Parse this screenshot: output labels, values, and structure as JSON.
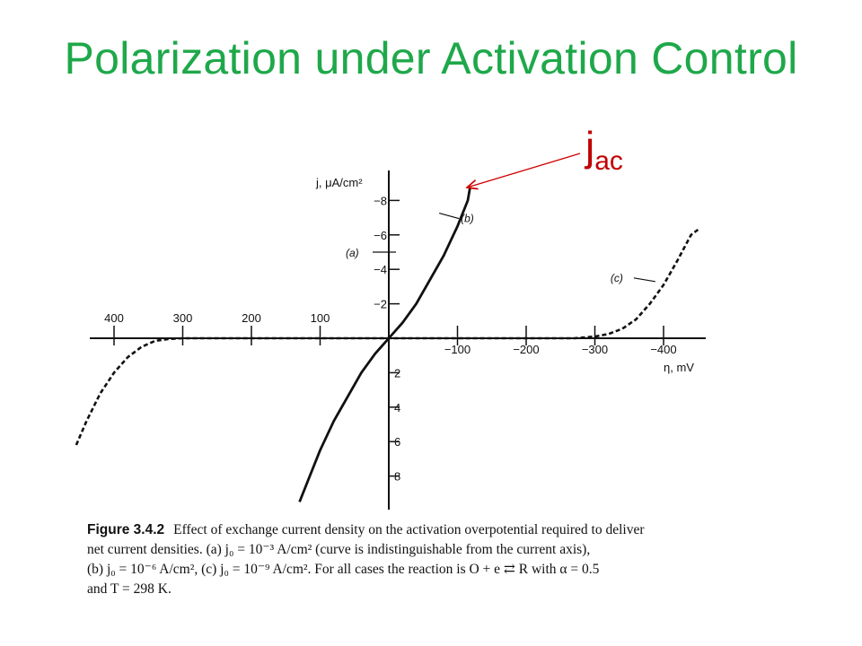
{
  "title": "Polarization under Activation Control",
  "annotation": {
    "text": "j",
    "subscript": "ac",
    "color": "#c00000"
  },
  "chart_data": {
    "type": "line",
    "xlabel": "η, mV",
    "ylabel": "j, μA/cm²",
    "xlim": [
      -450,
      450
    ],
    "ylim": [
      -10,
      10
    ],
    "x_ticks": [
      {
        "value": 400,
        "label": "400"
      },
      {
        "value": 300,
        "label": "300"
      },
      {
        "value": 200,
        "label": "200"
      },
      {
        "value": 100,
        "label": "100"
      },
      {
        "value": -100,
        "label": "−100"
      },
      {
        "value": -200,
        "label": "−200"
      },
      {
        "value": -300,
        "label": "−300"
      },
      {
        "value": -400,
        "label": "−400"
      }
    ],
    "y_ticks": [
      {
        "value": -8,
        "label": "−8"
      },
      {
        "value": -6,
        "label": "−6"
      },
      {
        "value": -4,
        "label": "−4"
      },
      {
        "value": -2,
        "label": "−2"
      },
      {
        "value": 2,
        "label": "2"
      },
      {
        "value": 4,
        "label": "4"
      },
      {
        "value": 6,
        "label": "6"
      },
      {
        "value": 8,
        "label": "8"
      }
    ],
    "series": [
      {
        "name": "(a)",
        "style": "solid",
        "label_at": [
          0,
          -5
        ],
        "points": [
          [
            0,
            -5
          ]
        ]
      },
      {
        "name": "(b)",
        "style": "solid",
        "label_at": [
          -110,
          -7
        ],
        "points": [
          [
            130,
            9.5
          ],
          [
            115,
            8
          ],
          [
            100,
            6.5
          ],
          [
            80,
            4.8
          ],
          [
            60,
            3.4
          ],
          [
            40,
            2
          ],
          [
            20,
            0.9
          ],
          [
            0,
            0
          ],
          [
            -20,
            -0.9
          ],
          [
            -40,
            -2
          ],
          [
            -60,
            -3.4
          ],
          [
            -80,
            -4.8
          ],
          [
            -100,
            -6.5
          ],
          [
            -115,
            -8
          ],
          [
            -118,
            -8.7
          ]
        ]
      },
      {
        "name": "(c)",
        "style": "dashed",
        "label_at": [
          -375,
          -3.5
        ],
        "points": [
          [
            455,
            6.2
          ],
          [
            440,
            4.8
          ],
          [
            420,
            3.2
          ],
          [
            400,
            2
          ],
          [
            380,
            1.1
          ],
          [
            360,
            0.5
          ],
          [
            340,
            0.15
          ],
          [
            320,
            0.04
          ],
          [
            300,
            0
          ],
          [
            0,
            0
          ],
          [
            -270,
            0
          ],
          [
            -300,
            -0.1
          ],
          [
            -320,
            -0.25
          ],
          [
            -340,
            -0.55
          ],
          [
            -360,
            -1.1
          ],
          [
            -380,
            -2
          ],
          [
            -400,
            -3.1
          ],
          [
            -420,
            -4.5
          ],
          [
            -440,
            -6
          ],
          [
            -450,
            -6.3
          ]
        ]
      }
    ]
  },
  "caption": {
    "head": "Figure 3.4.2",
    "lines": [
      "Effect of exchange current density on the activation overpotential required to deliver",
      "net current densities. (a) j₀ = 10⁻³ A/cm² (curve is indistinguishable from the current axis),",
      "(b) j₀ = 10⁻⁶ A/cm², (c) j₀ = 10⁻⁹ A/cm². For all cases the reaction is O + e ⇄ R with α = 0.5",
      "and T = 298 K."
    ]
  }
}
